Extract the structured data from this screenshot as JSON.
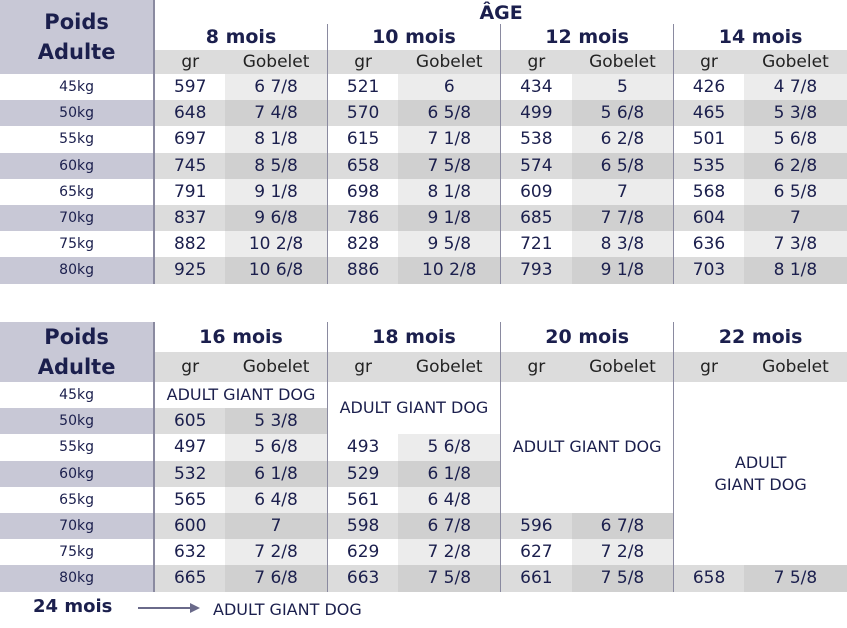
{
  "table1": {
    "corner_line1": "Poids",
    "corner_line2": "Adulte",
    "age_label": "ÂGE",
    "months": [
      "8 mois",
      "10 mois",
      "12 mois",
      "14 mois"
    ],
    "sub_gr": "gr",
    "sub_gobelet": "Gobelet",
    "rows": [
      {
        "weight": "45kg",
        "cells": [
          [
            "597",
            "6 7/8"
          ],
          [
            "521",
            "6"
          ],
          [
            "434",
            "5"
          ],
          [
            "426",
            "4 7/8"
          ]
        ]
      },
      {
        "weight": "50kg",
        "cells": [
          [
            "648",
            "7 4/8"
          ],
          [
            "570",
            "6 5/8"
          ],
          [
            "499",
            "5 6/8"
          ],
          [
            "465",
            "5 3/8"
          ]
        ]
      },
      {
        "weight": "55kg",
        "cells": [
          [
            "697",
            "8 1/8"
          ],
          [
            "615",
            "7 1/8"
          ],
          [
            "538",
            "6 2/8"
          ],
          [
            "501",
            "5 6/8"
          ]
        ]
      },
      {
        "weight": "60kg",
        "cells": [
          [
            "745",
            "8 5/8"
          ],
          [
            "658",
            "7 5/8"
          ],
          [
            "574",
            "6 5/8"
          ],
          [
            "535",
            "6 2/8"
          ]
        ]
      },
      {
        "weight": "65kg",
        "cells": [
          [
            "791",
            "9 1/8"
          ],
          [
            "698",
            "8 1/8"
          ],
          [
            "609",
            "7"
          ],
          [
            "568",
            "6 5/8"
          ]
        ]
      },
      {
        "weight": "70kg",
        "cells": [
          [
            "837",
            "9 6/8"
          ],
          [
            "786",
            "9 1/8"
          ],
          [
            "685",
            "7 7/8"
          ],
          [
            "604",
            "7"
          ]
        ]
      },
      {
        "weight": "75kg",
        "cells": [
          [
            "882",
            "10 2/8"
          ],
          [
            "828",
            "9 5/8"
          ],
          [
            "721",
            "8 3/8"
          ],
          [
            "636",
            "7 3/8"
          ]
        ]
      },
      {
        "weight": "80kg",
        "cells": [
          [
            "925",
            "10 6/8"
          ],
          [
            "886",
            "10 2/8"
          ],
          [
            "793",
            "9 1/8"
          ],
          [
            "703",
            "8 1/8"
          ]
        ]
      }
    ]
  },
  "table2": {
    "corner_line1": "Poids",
    "corner_line2": "Adulte",
    "months": [
      "16 mois",
      "18 mois",
      "20 mois",
      "22 mois"
    ],
    "sub_gr": "gr",
    "sub_gobelet": "Gobelet",
    "weights": [
      "45kg",
      "50kg",
      "55kg",
      "60kg",
      "65kg",
      "70kg",
      "75kg",
      "80kg"
    ],
    "adult_giant_dog": "ADULT GIANT DOG",
    "adult_line1": "ADULT",
    "adult_line2": "GIANT DOG",
    "m16": [
      [
        "605",
        "5 3/8"
      ],
      [
        "497",
        "5 6/8"
      ],
      [
        "532",
        "6 1/8"
      ],
      [
        "565",
        "6 4/8"
      ],
      [
        "600",
        "7"
      ],
      [
        "632",
        "7 2/8"
      ],
      [
        "665",
        "7 6/8"
      ]
    ],
    "m18": [
      [
        "493",
        "5 6/8"
      ],
      [
        "529",
        "6 1/8"
      ],
      [
        "561",
        "6 4/8"
      ],
      [
        "598",
        "6 7/8"
      ],
      [
        "629",
        "7 2/8"
      ],
      [
        "663",
        "7 5/8"
      ]
    ],
    "m20": [
      [
        "596",
        "6 7/8"
      ],
      [
        "627",
        "7 2/8"
      ],
      [
        "661",
        "7 5/8"
      ]
    ],
    "m22": [
      [
        "658",
        "7 5/8"
      ]
    ]
  },
  "footer": {
    "label": "24 mois",
    "text": "ADULT GIANT DOG"
  }
}
